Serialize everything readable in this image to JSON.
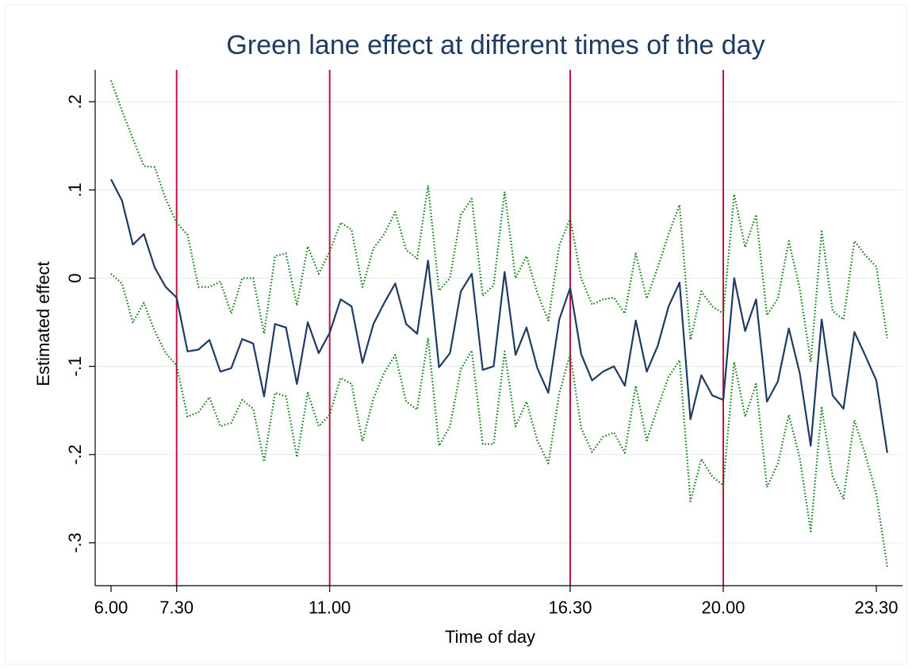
{
  "chart_data": {
    "type": "line",
    "title": "Green lane effect at different times of the day",
    "xlabel": "Time of day",
    "ylabel": "Estimated effect",
    "x_ticks": [
      {
        "value": 0,
        "label": "6.00"
      },
      {
        "value": 6,
        "label": "7.30"
      },
      {
        "value": 20,
        "label": "11.00"
      },
      {
        "value": 42,
        "label": "16.30"
      },
      {
        "value": 56,
        "label": "20.00"
      },
      {
        "value": 70,
        "label": "23.30"
      }
    ],
    "y_ticks": [
      {
        "value": -0.3,
        "label": "-.3"
      },
      {
        "value": -0.2,
        "label": "-.2"
      },
      {
        "value": -0.1,
        "label": "-.1"
      },
      {
        "value": 0,
        "label": "0"
      },
      {
        "value": 0.1,
        "label": ".1"
      },
      {
        "value": 0.2,
        "label": ".2"
      }
    ],
    "xlim": [
      0,
      71
    ],
    "ylim": [
      -0.35,
      0.23
    ],
    "grid": true,
    "vertical_lines": [
      6,
      20,
      42,
      56
    ],
    "colors": {
      "estimate": "#1f3b63",
      "ci": "#0a7a0a",
      "vline": "#c0143c",
      "title": "#1f3b63"
    },
    "series": [
      {
        "role": "estimate",
        "values": [
          0.112,
          0.088,
          0.038,
          0.05,
          0.012,
          -0.01,
          -0.022,
          -0.083,
          -0.081,
          -0.07,
          -0.106,
          -0.102,
          -0.069,
          -0.074,
          -0.134,
          -0.052,
          -0.056,
          -0.12,
          -0.05,
          -0.085,
          -0.062,
          -0.024,
          -0.032,
          -0.096,
          -0.052,
          -0.028,
          -0.006,
          -0.052,
          -0.063,
          0.02,
          -0.101,
          -0.085,
          -0.015,
          0.005,
          -0.104,
          -0.1,
          0.007,
          -0.087,
          -0.056,
          -0.102,
          -0.13,
          -0.047,
          -0.011,
          -0.086,
          -0.116,
          -0.106,
          -0.1,
          -0.122,
          -0.048,
          -0.106,
          -0.077,
          -0.032,
          -0.005,
          -0.16,
          -0.11,
          -0.133,
          -0.138,
          0.0,
          -0.06,
          -0.024,
          -0.14,
          -0.117,
          -0.057,
          -0.108,
          -0.19,
          -0.047,
          -0.133,
          -0.148,
          -0.061,
          -0.088,
          -0.116,
          -0.198
        ]
      },
      {
        "role": "ci_upper",
        "values": [
          0.224,
          0.19,
          0.158,
          0.127,
          0.126,
          0.09,
          0.063,
          0.049,
          -0.01,
          -0.01,
          -0.004,
          -0.04,
          0.0,
          0.0,
          -0.063,
          0.025,
          0.028,
          -0.031,
          0.036,
          0.005,
          0.03,
          0.063,
          0.055,
          -0.01,
          0.034,
          0.05,
          0.075,
          0.032,
          0.022,
          0.105,
          -0.014,
          0.0,
          0.072,
          0.09,
          -0.02,
          -0.008,
          0.098,
          0.0,
          0.025,
          -0.017,
          -0.048,
          0.037,
          0.068,
          0.0,
          -0.03,
          -0.024,
          -0.022,
          -0.04,
          0.028,
          -0.023,
          0.012,
          0.05,
          0.083,
          -0.07,
          -0.015,
          -0.032,
          -0.04,
          0.095,
          0.035,
          0.072,
          -0.042,
          -0.023,
          0.042,
          -0.012,
          -0.095,
          0.053,
          -0.037,
          -0.047,
          0.042,
          0.026,
          0.013,
          -0.068
        ]
      },
      {
        "role": "ci_lower",
        "values": [
          0.005,
          -0.006,
          -0.05,
          -0.028,
          -0.06,
          -0.085,
          -0.099,
          -0.157,
          -0.152,
          -0.135,
          -0.168,
          -0.164,
          -0.138,
          -0.148,
          -0.208,
          -0.13,
          -0.134,
          -0.203,
          -0.13,
          -0.168,
          -0.155,
          -0.113,
          -0.12,
          -0.185,
          -0.136,
          -0.107,
          -0.087,
          -0.14,
          -0.149,
          -0.068,
          -0.19,
          -0.168,
          -0.103,
          -0.082,
          -0.188,
          -0.188,
          -0.083,
          -0.168,
          -0.14,
          -0.184,
          -0.21,
          -0.131,
          -0.086,
          -0.17,
          -0.197,
          -0.18,
          -0.175,
          -0.198,
          -0.122,
          -0.184,
          -0.147,
          -0.112,
          -0.093,
          -0.253,
          -0.205,
          -0.225,
          -0.235,
          -0.095,
          -0.157,
          -0.12,
          -0.237,
          -0.21,
          -0.155,
          -0.204,
          -0.287,
          -0.147,
          -0.225,
          -0.25,
          -0.161,
          -0.2,
          -0.245,
          -0.327
        ]
      }
    ]
  }
}
